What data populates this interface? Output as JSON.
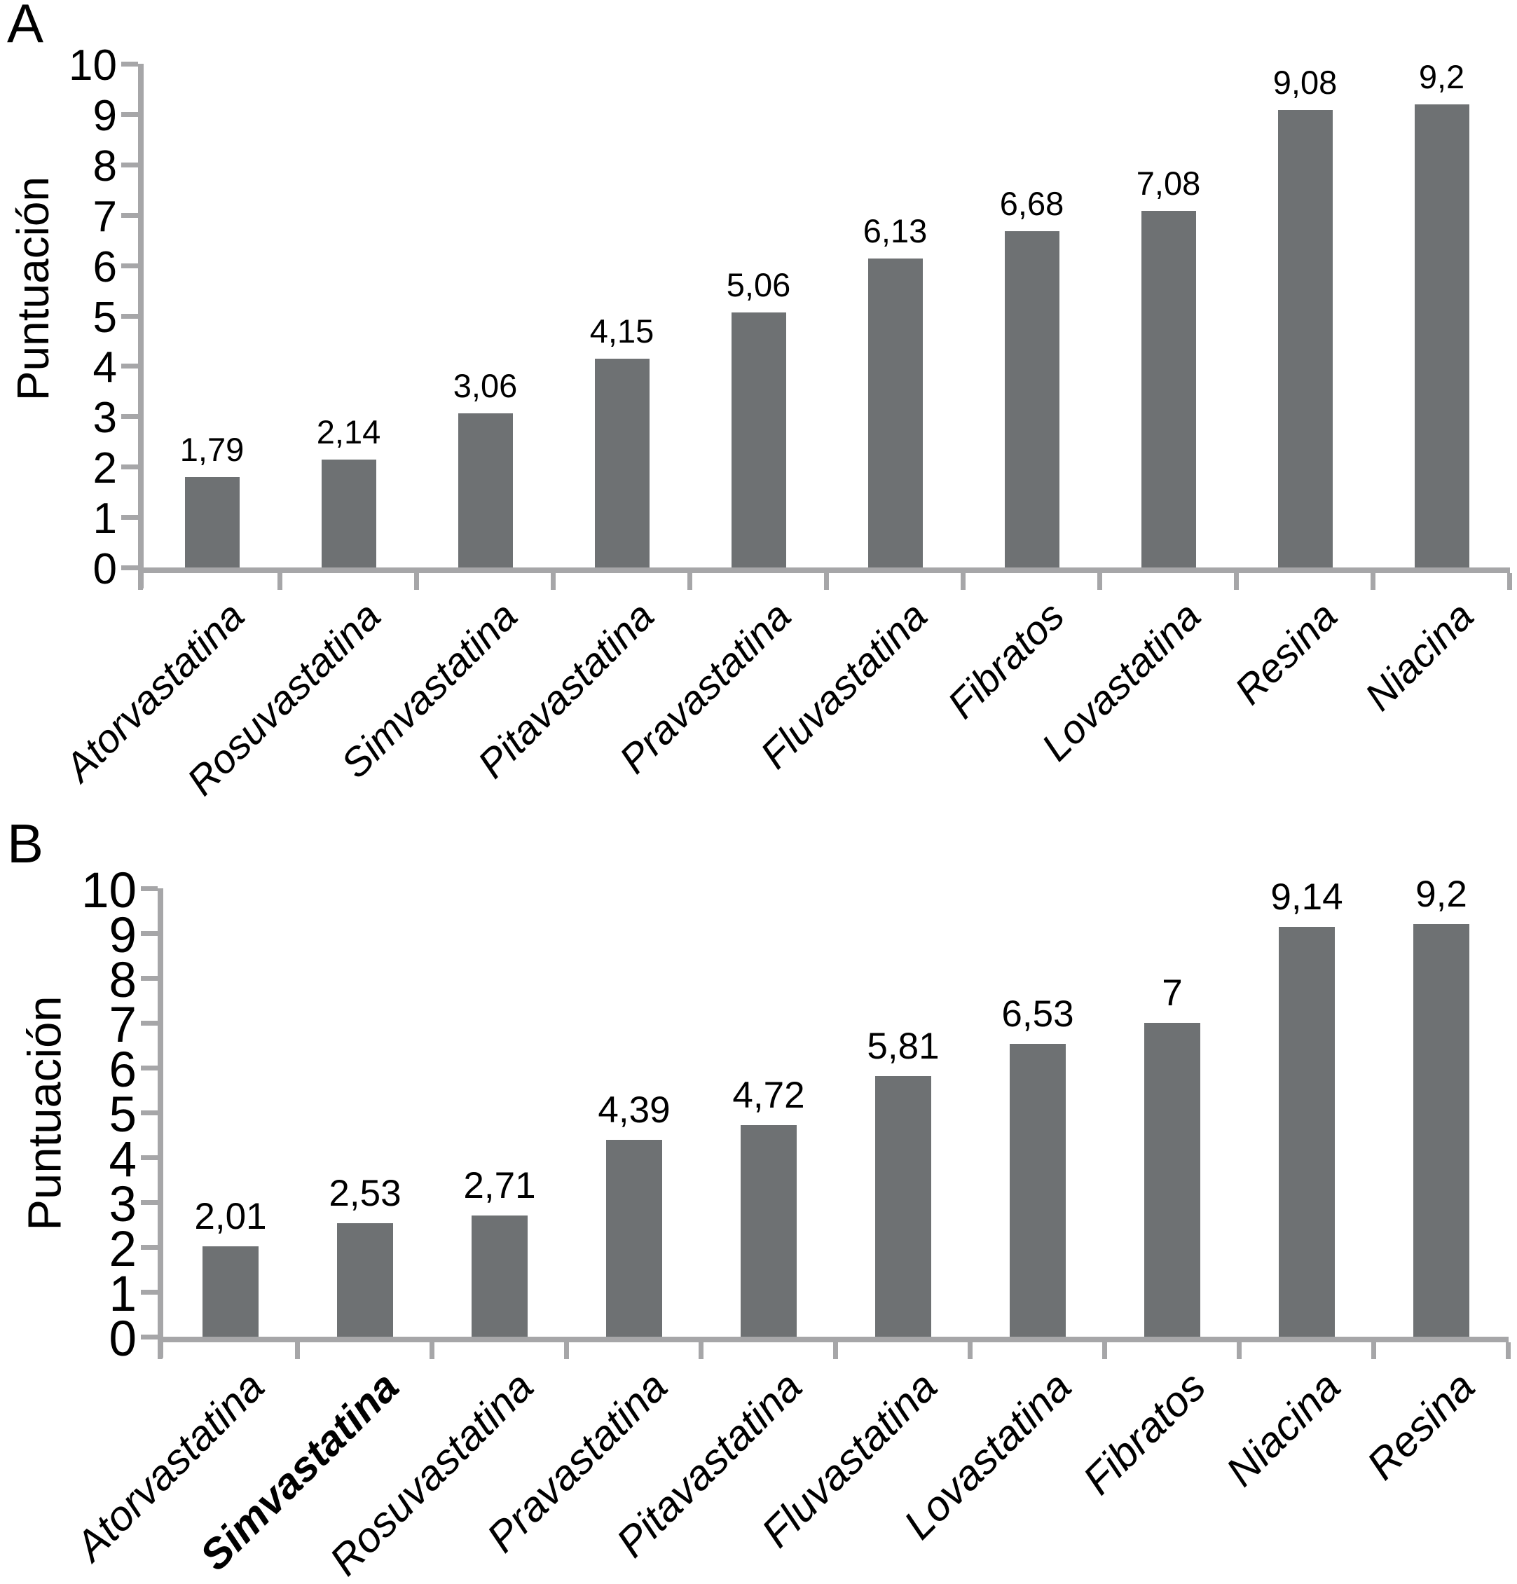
{
  "figure": {
    "background": "#ffffff",
    "text_color": "#000000"
  },
  "chart_data": [
    {
      "panel_label": "A",
      "type": "bar",
      "title": "",
      "xlabel": "",
      "ylabel": "Puntuación",
      "ylim": [
        0,
        10
      ],
      "ytick_step": 1,
      "grid": false,
      "legend": "none",
      "bar_color": "#6e7173",
      "axis_color": "#a6a6a8",
      "categories": [
        "Atorvastatina",
        "Rosuvastatina",
        "Simvastatina",
        "Pitavastatina",
        "Pravastatina",
        "Fluvastatina",
        "Fibratos",
        "Lovastatina",
        "Resina",
        "Niacina"
      ],
      "values": [
        1.79,
        2.14,
        3.06,
        4.15,
        5.06,
        6.13,
        6.68,
        7.08,
        9.08,
        9.2
      ],
      "value_labels": [
        "1,79",
        "2,14",
        "3,06",
        "4,15",
        "5,06",
        "6,13",
        "6,68",
        "7,08",
        "9,08",
        "9,2"
      ],
      "bold_categories": []
    },
    {
      "panel_label": "B",
      "type": "bar",
      "title": "",
      "xlabel": "",
      "ylabel": "Puntuación",
      "ylim": [
        0,
        10
      ],
      "ytick_step": 1,
      "grid": false,
      "legend": "none",
      "bar_color": "#6e7173",
      "axis_color": "#a6a6a8",
      "categories": [
        "Atorvastatina",
        "Simvastatina",
        "Rosuvastatina",
        "Pravastatina",
        "Pitavastatina",
        "Fluvastatina",
        "Lovastatina",
        "Fibratos",
        "Niacina",
        "Resina"
      ],
      "values": [
        2.01,
        2.53,
        2.71,
        4.39,
        4.72,
        5.81,
        6.53,
        7,
        9.14,
        9.2
      ],
      "value_labels": [
        "2,01",
        "2,53",
        "2,71",
        "4,39",
        "4,72",
        "5,81",
        "6,53",
        "7",
        "9,14",
        "9,2"
      ],
      "bold_categories": [
        "Simvastatina"
      ]
    }
  ]
}
